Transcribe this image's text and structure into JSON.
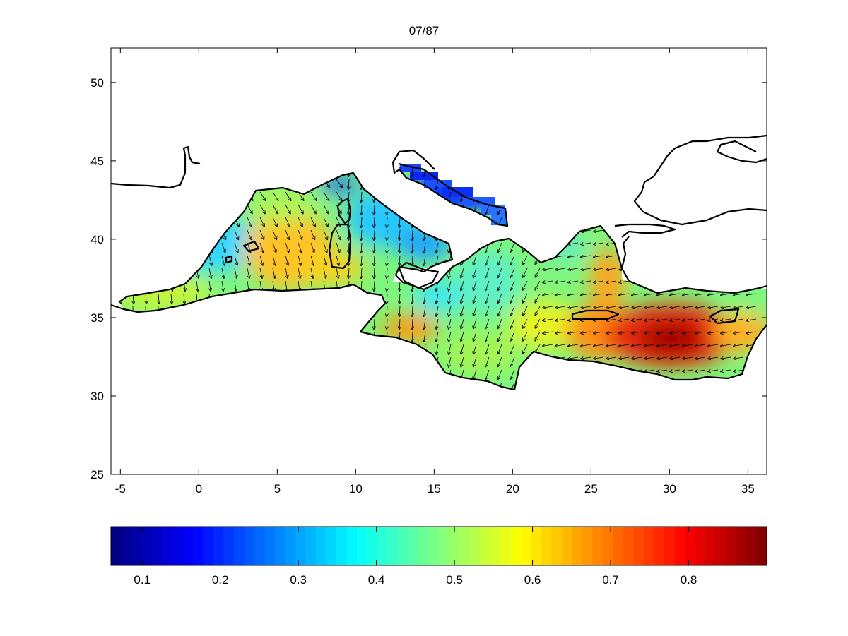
{
  "title": "07/87",
  "map": {
    "x_ticks": [
      "-5",
      "0",
      "5",
      "10",
      "15",
      "20",
      "25",
      "30",
      "35"
    ],
    "y_ticks": [
      "50",
      "45",
      "40",
      "35",
      "30",
      "25"
    ],
    "x_range": [
      -5.6,
      36.2
    ],
    "y_range": [
      25,
      52.2
    ]
  },
  "colorbar": {
    "colormap": "jet",
    "range": [
      0.06,
      0.9
    ],
    "ticks": [
      "0.1",
      "0.2",
      "0.3",
      "0.4",
      "0.5",
      "0.6",
      "0.7",
      "0.8"
    ]
  },
  "colors": {
    "land_outline": "#000000",
    "arrows": "#000000",
    "background": "#ffffff"
  }
}
